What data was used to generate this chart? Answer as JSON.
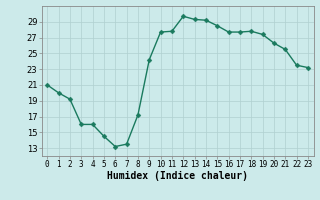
{
  "title": "",
  "x": [
    0,
    1,
    2,
    3,
    4,
    5,
    6,
    7,
    8,
    9,
    10,
    11,
    12,
    13,
    14,
    15,
    16,
    17,
    18,
    19,
    20,
    21,
    22,
    23
  ],
  "y": [
    21,
    20,
    19.2,
    16,
    16,
    14.5,
    13.2,
    13.5,
    17.2,
    24.2,
    27.7,
    27.8,
    29.7,
    29.3,
    29.2,
    28.5,
    27.7,
    27.7,
    27.8,
    27.4,
    26.3,
    25.5,
    23.5,
    23.2
  ],
  "line_color": "#1a7a5e",
  "marker_color": "#1a7a5e",
  "bg_color": "#cceaea",
  "grid_color": "#b0d0d0",
  "xlabel": "Humidex (Indice chaleur)",
  "ylim": [
    12,
    31
  ],
  "xlim": [
    -0.5,
    23.5
  ],
  "yticks": [
    13,
    15,
    17,
    19,
    21,
    23,
    25,
    27,
    29
  ],
  "xticks": [
    0,
    1,
    2,
    3,
    4,
    5,
    6,
    7,
    8,
    9,
    10,
    11,
    12,
    13,
    14,
    15,
    16,
    17,
    18,
    19,
    20,
    21,
    22,
    23
  ],
  "xtick_labels": [
    "0",
    "1",
    "2",
    "3",
    "4",
    "5",
    "6",
    "7",
    "8",
    "9",
    "10",
    "11",
    "12",
    "13",
    "14",
    "15",
    "16",
    "17",
    "18",
    "19",
    "20",
    "21",
    "22",
    "23"
  ],
  "line_width": 1.0,
  "marker_size": 2.5,
  "xlabel_fontsize": 7,
  "tick_fontsize": 5.5,
  "ytick_fontsize": 6
}
